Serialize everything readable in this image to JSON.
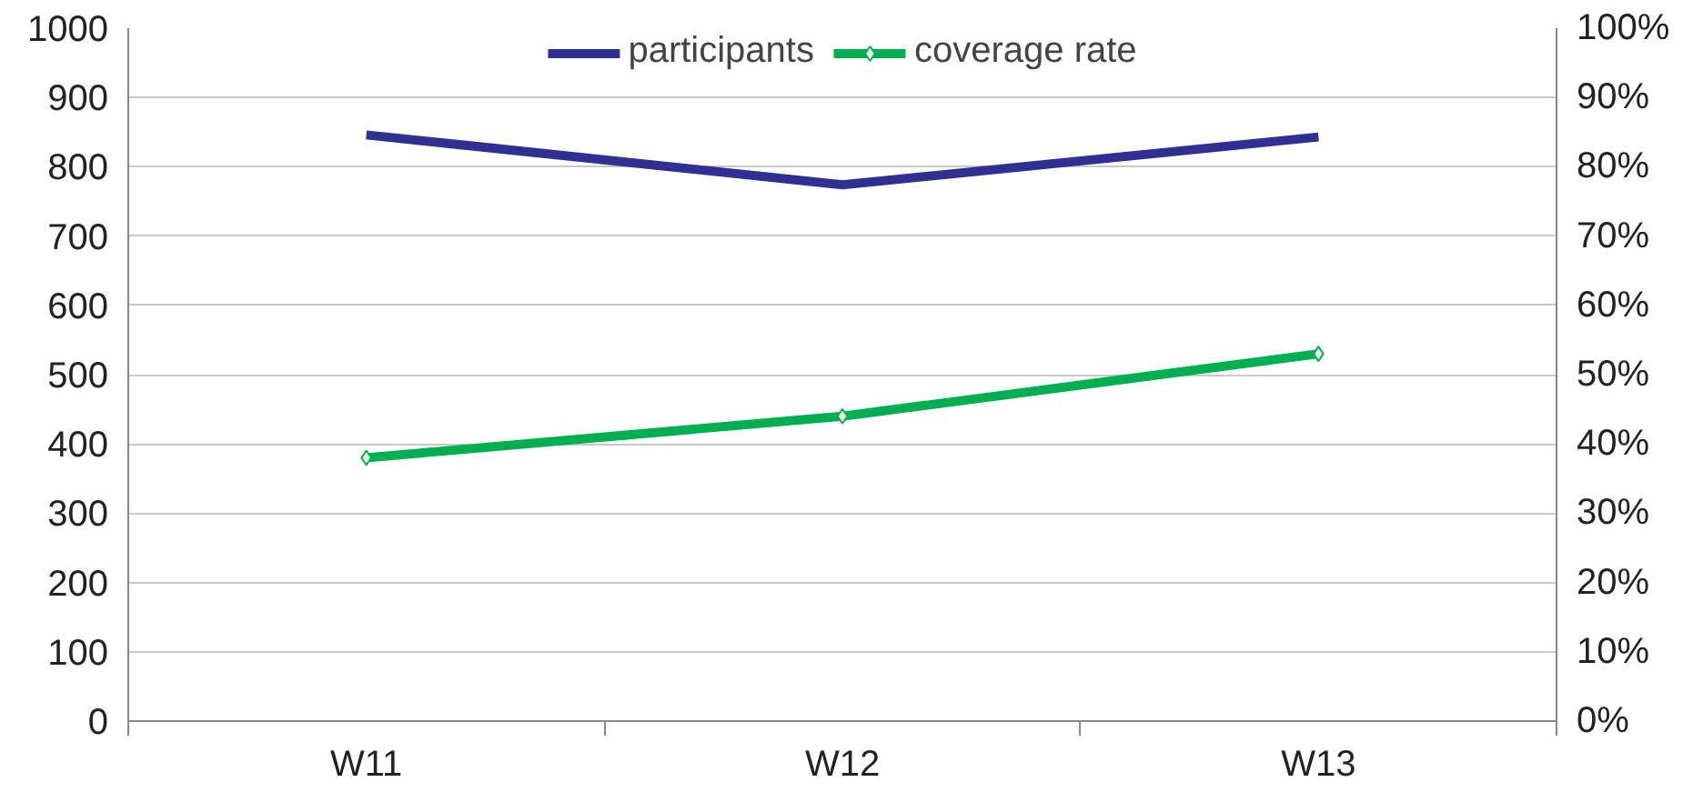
{
  "chart_data": {
    "type": "line",
    "categories": [
      "W11",
      "W12",
      "W13"
    ],
    "series": [
      {
        "name": "participants",
        "color": "#2e3192",
        "values": [
          846,
          774,
          843
        ]
      },
      {
        "name": "coverage rate",
        "color": "#00b050",
        "values": [
          38,
          44,
          53
        ],
        "axis": "y2",
        "marker": "diamond"
      }
    ],
    "ylim": [
      0,
      1000
    ],
    "yticks": [
      0,
      100,
      200,
      300,
      400,
      500,
      600,
      700,
      800,
      900,
      1000
    ],
    "y2lim": [
      0,
      100
    ],
    "y2ticks": [
      {
        "value": 0,
        "label": "0%"
      },
      {
        "value": 10,
        "label": "10%"
      },
      {
        "value": 20,
        "label": "20%"
      },
      {
        "value": 30,
        "label": "30%"
      },
      {
        "value": 40,
        "label": "40%"
      },
      {
        "value": 50,
        "label": "50%"
      },
      {
        "value": 60,
        "label": "60%"
      },
      {
        "value": 70,
        "label": "70%"
      },
      {
        "value": 80,
        "label": "80%"
      },
      {
        "value": 90,
        "label": "90%"
      },
      {
        "value": 100,
        "label": "100%"
      }
    ],
    "grid": "y",
    "legend": "top",
    "line_style": "solid"
  }
}
